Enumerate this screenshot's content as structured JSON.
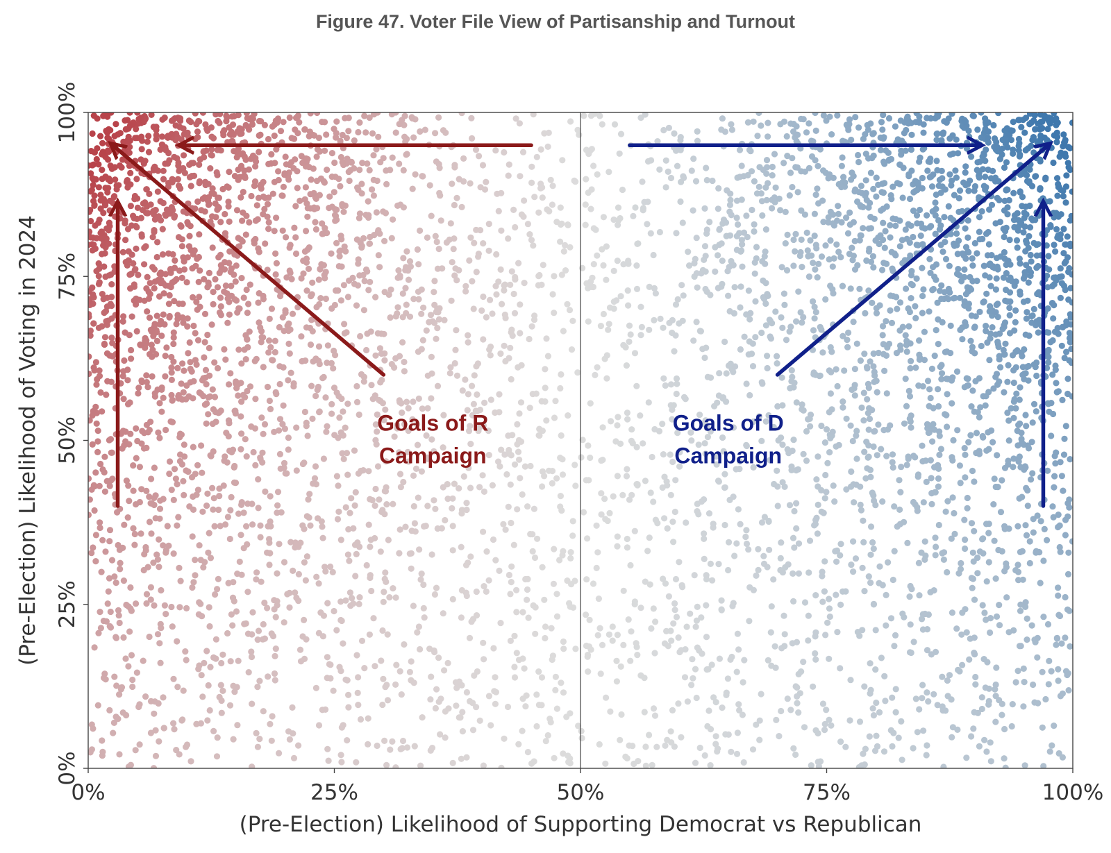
{
  "figure": {
    "title": "Figure 47. Voter File View of Partisanship and Turnout"
  },
  "chart_data": {
    "type": "scatter",
    "title": "Figure 47. Voter File View of Partisanship and Turnout",
    "xlabel": "(Pre-Election) Likelihood of Supporting Democrat vs Republican",
    "ylabel": "(Pre-Election) Likelihood of Voting in 2024",
    "xlim": [
      0,
      100
    ],
    "ylim": [
      0,
      100
    ],
    "x_ticks": [
      "0%",
      "25%",
      "50%",
      "75%",
      "100%"
    ],
    "x_tick_values": [
      0,
      25,
      50,
      75,
      100
    ],
    "y_ticks": [
      "0%",
      "25%",
      "50%",
      "75%",
      "100%"
    ],
    "y_tick_values": [
      0,
      25,
      50,
      75,
      100
    ],
    "grid": false,
    "reference_line_x": 50,
    "point_colors": {
      "republican": "#b8434a",
      "neutral": "#dcdcdc",
      "democrat": "#3f78ad"
    },
    "point_distribution_note": "Thousands of points; density rises toward (0%,100%) and (100%,100%)",
    "annotations": [
      {
        "text_lines": [
          "Goals of R",
          "Campaign"
        ],
        "x": 35,
        "y": 51.5,
        "color": "#8b1a1a"
      },
      {
        "text_lines": [
          "Goals of D",
          "Campaign"
        ],
        "x": 65,
        "y": 51.5,
        "color": "#10208a"
      }
    ],
    "arrows": [
      {
        "from": [
          45,
          95
        ],
        "to": [
          9.5,
          95
        ],
        "color": "#8b1a1a"
      },
      {
        "from": [
          30,
          60
        ],
        "to": [
          2.5,
          95
        ],
        "color": "#8b1a1a"
      },
      {
        "from": [
          3,
          40
        ],
        "to": [
          3,
          86
        ],
        "color": "#8b1a1a"
      },
      {
        "from": [
          55,
          95
        ],
        "to": [
          90.5,
          95
        ],
        "color": "#10208a"
      },
      {
        "from": [
          70,
          60
        ],
        "to": [
          97.5,
          95
        ],
        "color": "#10208a"
      },
      {
        "from": [
          97,
          40
        ],
        "to": [
          97,
          86
        ],
        "color": "#10208a"
      }
    ]
  }
}
